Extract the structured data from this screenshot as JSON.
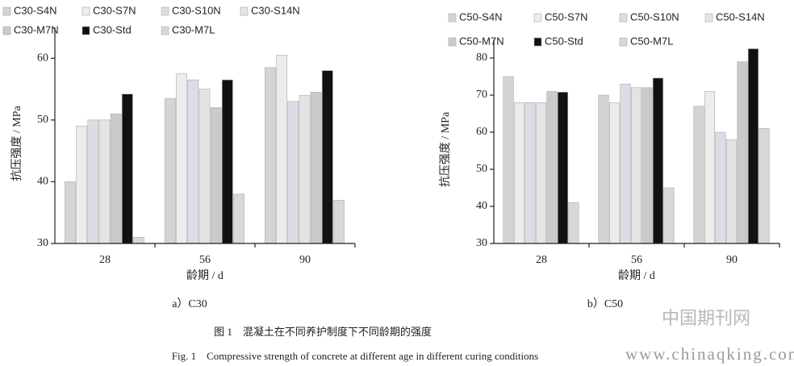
{
  "chart_data": [
    {
      "type": "bar",
      "caption": "a）C30",
      "ylabel": "抗压强度 / MPa",
      "xlabel": "龄期 / d",
      "categories": [
        "28",
        "56",
        "90"
      ],
      "series": [
        {
          "name": "C30-S4N",
          "color": "#d4d4d4",
          "values": [
            40,
            53.5,
            58.5
          ]
        },
        {
          "name": "C30-S7N",
          "color": "#ececec",
          "values": [
            49,
            57.5,
            60.5
          ]
        },
        {
          "name": "C30-S10N",
          "color": "#dcdce6",
          "values": [
            50,
            56.5,
            53
          ]
        },
        {
          "name": "C30-S14N",
          "color": "#e4e4e4",
          "values": [
            50,
            55,
            54
          ]
        },
        {
          "name": "C30-M7N",
          "color": "#cacaca",
          "values": [
            51,
            52,
            54.5
          ]
        },
        {
          "name": "C30-Std",
          "color": "#111111",
          "values": [
            54.2,
            56.5,
            58
          ]
        },
        {
          "name": "C30-M7L",
          "color": "#d8d8d8",
          "values": [
            31,
            38,
            37
          ]
        }
      ],
      "ylim": [
        30,
        65
      ],
      "yticks": [
        30,
        40,
        50,
        60
      ],
      "legend": "top"
    },
    {
      "type": "bar",
      "caption": "b）C50",
      "ylabel": "抗压强度 / MPa",
      "xlabel": "龄期 / d",
      "categories": [
        "28",
        "56",
        "90"
      ],
      "series": [
        {
          "name": "C50-S4N",
          "color": "#d4d4d4",
          "values": [
            75,
            70,
            67
          ]
        },
        {
          "name": "C50-S7N",
          "color": "#ececec",
          "values": [
            68,
            68,
            71
          ]
        },
        {
          "name": "C50-S10N",
          "color": "#dcdce6",
          "values": [
            68,
            73,
            60
          ]
        },
        {
          "name": "C50-S14N",
          "color": "#e4e4e4",
          "values": [
            68,
            72,
            58
          ]
        },
        {
          "name": "C50-M7N",
          "color": "#cacaca",
          "values": [
            71,
            72,
            79
          ]
        },
        {
          "name": "C50-Std",
          "color": "#111111",
          "values": [
            70.8,
            74.6,
            82.5
          ]
        },
        {
          "name": "C50-M7L",
          "color": "#d8d8d8",
          "values": [
            41,
            45,
            61
          ]
        }
      ],
      "ylim": [
        30,
        85
      ],
      "yticks": [
        30,
        40,
        50,
        60,
        70,
        80
      ],
      "legend": "top"
    }
  ],
  "figure": {
    "caption_cn": "图 1　混凝土在不同养护制度下不同龄期的强度",
    "caption_en": "Fig. 1　Compressive strength of concrete at different age in different curing conditions"
  },
  "watermark": {
    "cn": "中国期刊网",
    "url": "www.chinaqking.com"
  }
}
